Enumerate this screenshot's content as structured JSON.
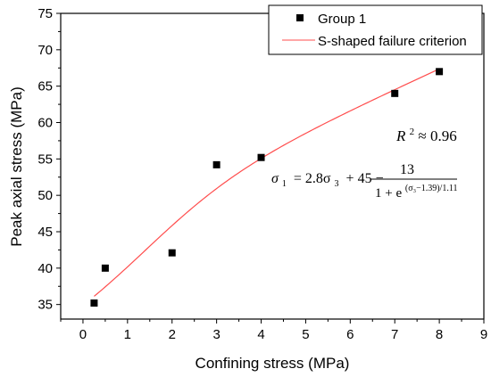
{
  "chart_data": {
    "type": "scatter",
    "xlabel": "Confining stress (MPa)",
    "ylabel": "Peak axial stress (MPa)",
    "xlim": [
      -0.5,
      9
    ],
    "ylim": [
      33,
      75
    ],
    "xticks": [
      0,
      1,
      2,
      3,
      4,
      5,
      6,
      7,
      8,
      9
    ],
    "yticks": [
      35,
      40,
      45,
      50,
      55,
      60,
      65,
      70,
      75
    ],
    "grid": false,
    "legend": {
      "position": "top-right",
      "entries": [
        "Group 1",
        "S-shaped failure criterion"
      ]
    },
    "series": [
      {
        "name": "Group 1",
        "kind": "scatter",
        "marker": "square",
        "color": "#000000",
        "x": [
          0.25,
          0.5,
          2,
          3,
          4,
          7,
          8
        ],
        "y": [
          35.2,
          40.0,
          42.1,
          54.2,
          55.2,
          64.0,
          67.0
        ]
      },
      {
        "name": "S-shaped failure criterion",
        "kind": "line",
        "color": "#ff4d4d",
        "x_range": [
          0.25,
          8
        ],
        "formula": {
          "a": 2.8,
          "b": 45,
          "c": 13,
          "d": 1.39,
          "e": 1.11
        }
      }
    ],
    "annotations": {
      "r2_label": "R",
      "r2_sup": "2",
      "r2_value": "≈ 0.96",
      "eq_lhs": "σ",
      "eq_lhs_sub": "1",
      "eq_mid": "= 2.8σ",
      "eq_mid_sub": "3",
      "eq_mid2": "+ 45 −",
      "eq_num": "13",
      "eq_den": "1 + e",
      "eq_exp": "(σ₃−1.39)/1.11"
    }
  }
}
